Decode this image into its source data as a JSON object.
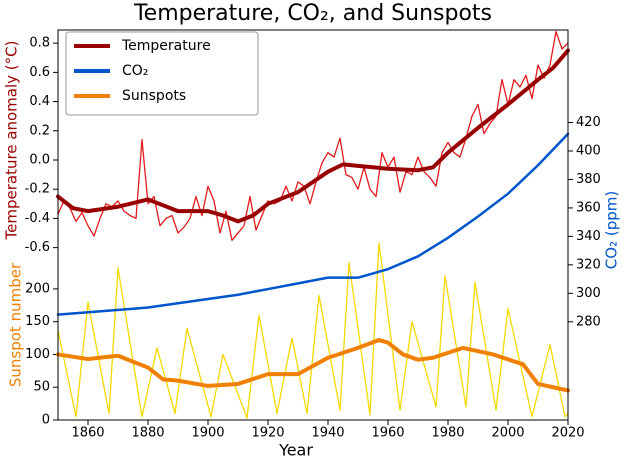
{
  "chart_data": {
    "type": "line",
    "title": "Temperature, CO₂, and Sunspots",
    "xlabel": "Year",
    "ylabel": "Temperature anomaly (°C)",
    "y2label": "CO₂ (ppm)",
    "y3label": "Sunspot number",
    "xlim": [
      1850,
      2020
    ],
    "xticks": [
      1860,
      1880,
      1900,
      1920,
      1940,
      1960,
      1980,
      2000,
      2020
    ],
    "ylim": [
      -1.78,
      0.89
    ],
    "yticks": [
      -0.6,
      -0.4,
      -0.2,
      {
        "value": 0,
        "label": "0.0"
      },
      0.2,
      0.4,
      0.6,
      0.8
    ],
    "y2lim": [
      211,
      485
    ],
    "y2ticks": [
      280,
      300,
      320,
      340,
      360,
      380,
      400,
      420
    ],
    "y3lim": [
      0,
      595
    ],
    "y3ticks": [
      0,
      50,
      100,
      150,
      200
    ],
    "legend": "upper left",
    "series": [
      {
        "name": "Temperature",
        "color": "#990000",
        "axis": "y",
        "x": [
          1850,
          1855,
          1860,
          1870,
          1880,
          1890,
          1900,
          1905,
          1910,
          1915,
          1920,
          1930,
          1940,
          1945,
          1950,
          1960,
          1970,
          1975,
          1980,
          1990,
          2000,
          2010,
          2015,
          2020
        ],
        "values": [
          -0.25,
          -0.33,
          -0.35,
          -0.32,
          -0.27,
          -0.35,
          -0.35,
          -0.38,
          -0.42,
          -0.38,
          -0.3,
          -0.22,
          -0.08,
          -0.03,
          -0.04,
          -0.06,
          -0.07,
          -0.05,
          0.05,
          0.22,
          0.38,
          0.55,
          0.63,
          0.75
        ]
      },
      {
        "name": "CO₂",
        "color": "#0055cc",
        "axis": "y2",
        "x": [
          1850,
          1880,
          1890,
          1900,
          1910,
          1920,
          1930,
          1940,
          1950,
          1955,
          1960,
          1970,
          1980,
          1990,
          2000,
          2010,
          2020
        ],
        "values": [
          285,
          290,
          293,
          296,
          299,
          303,
          307,
          311,
          311,
          314,
          317,
          326,
          339,
          354,
          370,
          390,
          412
        ]
      },
      {
        "name": "Sunspots",
        "color": "#f08000",
        "axis": "y3",
        "x": [
          1850,
          1860,
          1870,
          1880,
          1885,
          1890,
          1900,
          1910,
          1920,
          1930,
          1940,
          1950,
          1957,
          1960,
          1965,
          1970,
          1975,
          1985,
          1995,
          2005,
          2010,
          2020
        ],
        "values": [
          100,
          93,
          98,
          80,
          62,
          60,
          52,
          55,
          70,
          70,
          95,
          110,
          122,
          118,
          100,
          92,
          95,
          110,
          100,
          85,
          55,
          45
        ]
      },
      {
        "color": "#e31a1c",
        "axis": "y",
        "x": [
          1850,
          1852,
          1854,
          1856,
          1858,
          1860,
          1862,
          1864,
          1866,
          1868,
          1870,
          1872,
          1874,
          1876,
          1878,
          1880,
          1882,
          1884,
          1886,
          1888,
          1890,
          1892,
          1894,
          1896,
          1898,
          1900,
          1902,
          1904,
          1906,
          1908,
          1910,
          1912,
          1914,
          1916,
          1918,
          1920,
          1922,
          1924,
          1926,
          1928,
          1930,
          1932,
          1934,
          1936,
          1938,
          1940,
          1942,
          1944,
          1946,
          1948,
          1950,
          1952,
          1954,
          1956,
          1958,
          1960,
          1962,
          1964,
          1966,
          1968,
          1970,
          1972,
          1974,
          1976,
          1978,
          1980,
          1982,
          1984,
          1986,
          1988,
          1990,
          1992,
          1994,
          1996,
          1998,
          2000,
          2002,
          2004,
          2006,
          2008,
          2010,
          2012,
          2014,
          2016,
          2018,
          2020
        ],
        "values": [
          -0.37,
          -0.28,
          -0.33,
          -0.42,
          -0.36,
          -0.45,
          -0.52,
          -0.4,
          -0.3,
          -0.32,
          -0.28,
          -0.35,
          -0.38,
          -0.4,
          0.14,
          -0.3,
          -0.25,
          -0.45,
          -0.4,
          -0.38,
          -0.5,
          -0.46,
          -0.4,
          -0.25,
          -0.38,
          -0.18,
          -0.28,
          -0.5,
          -0.35,
          -0.55,
          -0.5,
          -0.45,
          -0.25,
          -0.48,
          -0.38,
          -0.28,
          -0.3,
          -0.28,
          -0.18,
          -0.28,
          -0.15,
          -0.18,
          -0.3,
          -0.15,
          -0.02,
          0.05,
          0.02,
          0.15,
          -0.1,
          -0.12,
          -0.2,
          -0.05,
          -0.2,
          -0.25,
          0.05,
          -0.05,
          0.02,
          -0.22,
          -0.08,
          -0.1,
          0.02,
          -0.08,
          -0.12,
          -0.18,
          0.05,
          0.12,
          0.05,
          0.02,
          0.15,
          0.3,
          0.38,
          0.18,
          0.25,
          0.3,
          0.55,
          0.38,
          0.55,
          0.5,
          0.58,
          0.42,
          0.65,
          0.56,
          0.65,
          0.88,
          0.76,
          0.8
        ]
      },
      {
        "color": "#f5d800",
        "axis": "y3",
        "x": [
          1850,
          1856,
          1860,
          1867,
          1870,
          1878,
          1883,
          1889,
          1893,
          1901,
          1905,
          1913,
          1917,
          1923,
          1928,
          1933,
          1937,
          1944,
          1947,
          1954,
          1957,
          1964,
          1968,
          1976,
          1979,
          1986,
          1989,
          1996,
          2000,
          2008,
          2014,
          2019,
          2020
        ],
        "values": [
          137,
          5,
          180,
          10,
          232,
          5,
          110,
          10,
          140,
          5,
          100,
          3,
          160,
          10,
          125,
          10,
          190,
          15,
          240,
          8,
          270,
          15,
          150,
          20,
          220,
          20,
          210,
          15,
          170,
          5,
          115,
          5,
          10
        ]
      }
    ]
  }
}
